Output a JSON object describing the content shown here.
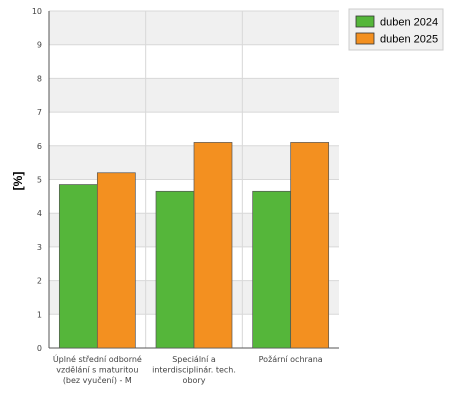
{
  "chart_data": {
    "type": "bar",
    "ylabel": "[%]",
    "xlabel": "",
    "ylim": [
      0,
      10
    ],
    "yticks": [
      0,
      1,
      2,
      3,
      4,
      5,
      6,
      7,
      8,
      9,
      10
    ],
    "grid": true,
    "legend": "top-right",
    "categories": [
      [
        "Úplné střední odborné",
        "vzdělání s maturitou",
        "(bez vyučení) - M"
      ],
      [
        "Speciální a",
        "interdisciplinár. tech.",
        "obory"
      ],
      [
        "Požární ochrana"
      ]
    ],
    "series": [
      {
        "name": "duben 2024",
        "color": "#55b63a",
        "values": [
          4.85,
          4.65,
          4.65
        ]
      },
      {
        "name": "duben 2025",
        "color": "#f39020",
        "values": [
          5.2,
          6.1,
          6.1
        ]
      }
    ]
  }
}
